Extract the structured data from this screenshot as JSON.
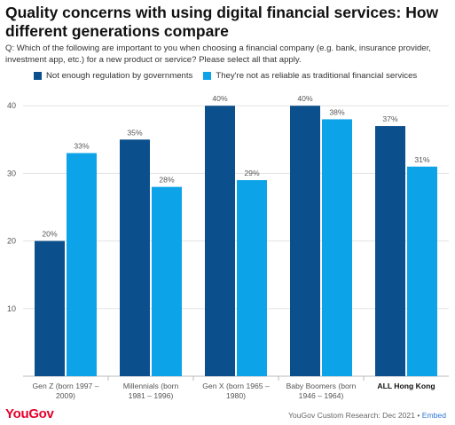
{
  "title": "Quality concerns with using digital financial services: How different generations compare",
  "question": "Q: Which of the following are important to you when choosing a financial company (e.g. bank, insurance provider, investment app, etc.) for a new product or service? Please select all that apply.",
  "footer": {
    "logo": "YouGov",
    "source": "YouGov Custom Research: Dec 2021 •",
    "embed_label": "Embed"
  },
  "colors": {
    "series1": "#0b4f8c",
    "series2": "#0da3e9",
    "grid": "#e3e3e3",
    "axis_text": "#555555"
  },
  "chart_data": {
    "type": "bar",
    "categories": [
      [
        "Gen Z (born 1997 –",
        "2009)"
      ],
      [
        "Millennials (born",
        "1981 – 1996)"
      ],
      [
        "Gen X (born 1965 –",
        "1980)"
      ],
      [
        "Baby Boomers (born",
        "1946 – 1964)"
      ],
      [
        "ALL Hong Kong"
      ]
    ],
    "bold_categories": [
      false,
      false,
      false,
      false,
      true
    ],
    "series": [
      {
        "name": "Not enough regulation by governments",
        "values": [
          20,
          35,
          40,
          40,
          37
        ],
        "labels": [
          "20%",
          "35%",
          "40%",
          "40%",
          "37%"
        ]
      },
      {
        "name": "They're not as reliable as traditional financial services",
        "values": [
          33,
          28,
          29,
          38,
          31
        ],
        "labels": [
          "33%",
          "28%",
          "29%",
          "38%",
          "31%"
        ]
      }
    ],
    "ylim": [
      0,
      45
    ],
    "yticks": [
      10,
      20,
      30,
      40
    ],
    "grid": true,
    "legend_position": "top-left"
  }
}
